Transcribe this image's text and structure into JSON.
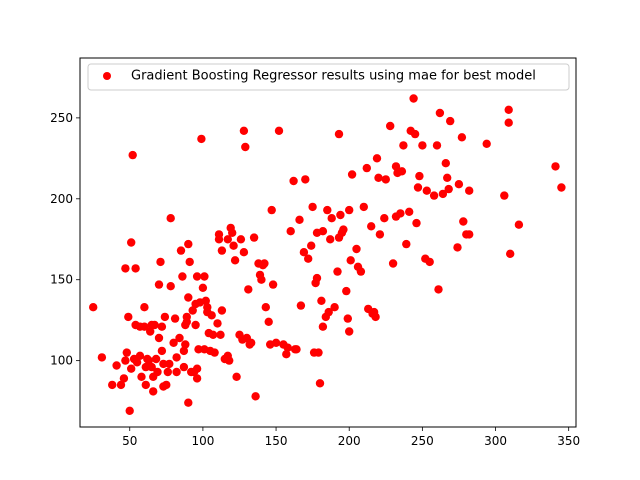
{
  "chart_data": {
    "type": "scatter",
    "title": "",
    "xlabel": "",
    "ylabel": "",
    "xlim": [
      16,
      355
    ],
    "ylim": [
      59,
      287
    ],
    "xticks": [
      50,
      100,
      150,
      200,
      250,
      300,
      350
    ],
    "yticks": [
      100,
      150,
      200,
      250
    ],
    "grid": false,
    "legend_position": "upper-left",
    "series": [
      {
        "name": "Gradient Boosting Regressor results using mae for best model",
        "color": "#ff0000",
        "points": [
          [
            25,
            133
          ],
          [
            31,
            102
          ],
          [
            38,
            85
          ],
          [
            41,
            97
          ],
          [
            44,
            85
          ],
          [
            46,
            89
          ],
          [
            47,
            100
          ],
          [
            47,
            157
          ],
          [
            48,
            105
          ],
          [
            49,
            127
          ],
          [
            50,
            69
          ],
          [
            51,
            95
          ],
          [
            51,
            173
          ],
          [
            52,
            227
          ],
          [
            53,
            101
          ],
          [
            54,
            122
          ],
          [
            54,
            157
          ],
          [
            55,
            99
          ],
          [
            57,
            103
          ],
          [
            57,
            121
          ],
          [
            58,
            90
          ],
          [
            60,
            133
          ],
          [
            60,
            121
          ],
          [
            61,
            96
          ],
          [
            61,
            85
          ],
          [
            62,
            101
          ],
          [
            63,
            100
          ],
          [
            64,
            118
          ],
          [
            65,
            96
          ],
          [
            65,
            122
          ],
          [
            66,
            81
          ],
          [
            66,
            90
          ],
          [
            67,
            122
          ],
          [
            68,
            101
          ],
          [
            69,
            93
          ],
          [
            70,
            114
          ],
          [
            70,
            147
          ],
          [
            71,
            161
          ],
          [
            72,
            106
          ],
          [
            72,
            121
          ],
          [
            73,
            98
          ],
          [
            73,
            84
          ],
          [
            74,
            127
          ],
          [
            75,
            85
          ],
          [
            76,
            93
          ],
          [
            77,
            98
          ],
          [
            78,
            188
          ],
          [
            78,
            146
          ],
          [
            80,
            111
          ],
          [
            81,
            126
          ],
          [
            82,
            102
          ],
          [
            82,
            93
          ],
          [
            84,
            114
          ],
          [
            85,
            168
          ],
          [
            86,
            152
          ],
          [
            87,
            96
          ],
          [
            87,
            106
          ],
          [
            88,
            122
          ],
          [
            88,
            110
          ],
          [
            89,
            124
          ],
          [
            89,
            127
          ],
          [
            90,
            74
          ],
          [
            90,
            139
          ],
          [
            90,
            172
          ],
          [
            91,
            161
          ],
          [
            92,
            93
          ],
          [
            93,
            131
          ],
          [
            94,
            93
          ],
          [
            95,
            122
          ],
          [
            95,
            135
          ],
          [
            96,
            89
          ],
          [
            96,
            152
          ],
          [
            96,
            95
          ],
          [
            97,
            107
          ],
          [
            98,
            136
          ],
          [
            99,
            237
          ],
          [
            100,
            145
          ],
          [
            101,
            107
          ],
          [
            101,
            152
          ],
          [
            102,
            137
          ],
          [
            103,
            130
          ],
          [
            103,
            133
          ],
          [
            104,
            117
          ],
          [
            105,
            106
          ],
          [
            106,
            128
          ],
          [
            107,
            116
          ],
          [
            108,
            105
          ],
          [
            110,
            123
          ],
          [
            111,
            178
          ],
          [
            111,
            175
          ],
          [
            112,
            116
          ],
          [
            113,
            131
          ],
          [
            113,
            168
          ],
          [
            115,
            101
          ],
          [
            117,
            175
          ],
          [
            117,
            103
          ],
          [
            118,
            100
          ],
          [
            119,
            182
          ],
          [
            120,
            179
          ],
          [
            121,
            171
          ],
          [
            122,
            162
          ],
          [
            123,
            90
          ],
          [
            125,
            116
          ],
          [
            126,
            175
          ],
          [
            127,
            113
          ],
          [
            128,
            242
          ],
          [
            128,
            167
          ],
          [
            129,
            232
          ],
          [
            130,
            114
          ],
          [
            131,
            144
          ],
          [
            132,
            110
          ],
          [
            133,
            111
          ],
          [
            135,
            176
          ],
          [
            136,
            78
          ],
          [
            138,
            160
          ],
          [
            139,
            153
          ],
          [
            140,
            150
          ],
          [
            141,
            159
          ],
          [
            142,
            160
          ],
          [
            143,
            133
          ],
          [
            145,
            124
          ],
          [
            146,
            110
          ],
          [
            147,
            193
          ],
          [
            148,
            147
          ],
          [
            150,
            111
          ],
          [
            152,
            242
          ],
          [
            155,
            110
          ],
          [
            157,
            104
          ],
          [
            158,
            108
          ],
          [
            160,
            180
          ],
          [
            162,
            211
          ],
          [
            163,
            107
          ],
          [
            164,
            107
          ],
          [
            166,
            187
          ],
          [
            167,
            134
          ],
          [
            169,
            167
          ],
          [
            170,
            212
          ],
          [
            172,
            163
          ],
          [
            174,
            171
          ],
          [
            175,
            195
          ],
          [
            176,
            105
          ],
          [
            177,
            148
          ],
          [
            178,
            151
          ],
          [
            178,
            179
          ],
          [
            179,
            105
          ],
          [
            180,
            86
          ],
          [
            181,
            137
          ],
          [
            182,
            180
          ],
          [
            182,
            121
          ],
          [
            184,
            127
          ],
          [
            185,
            193
          ],
          [
            186,
            130
          ],
          [
            187,
            175
          ],
          [
            188,
            188
          ],
          [
            190,
            133
          ],
          [
            192,
            155
          ],
          [
            193,
            240
          ],
          [
            193,
            176
          ],
          [
            194,
            190
          ],
          [
            195,
            179
          ],
          [
            196,
            181
          ],
          [
            198,
            143
          ],
          [
            199,
            126
          ],
          [
            200,
            118
          ],
          [
            200,
            193
          ],
          [
            201,
            162
          ],
          [
            202,
            215
          ],
          [
            205,
            169
          ],
          [
            206,
            158
          ],
          [
            208,
            155
          ],
          [
            210,
            195
          ],
          [
            212,
            219
          ],
          [
            213,
            132
          ],
          [
            215,
            183
          ],
          [
            216,
            129
          ],
          [
            217,
            130
          ],
          [
            218,
            127
          ],
          [
            219,
            225
          ],
          [
            220,
            213
          ],
          [
            221,
            178
          ],
          [
            224,
            188
          ],
          [
            225,
            212
          ],
          [
            228,
            245
          ],
          [
            230,
            160
          ],
          [
            232,
            189
          ],
          [
            232,
            220
          ],
          [
            233,
            216
          ],
          [
            235,
            191
          ],
          [
            236,
            217
          ],
          [
            237,
            233
          ],
          [
            239,
            172
          ],
          [
            241,
            192
          ],
          [
            242,
            242
          ],
          [
            244,
            262
          ],
          [
            245,
            240
          ],
          [
            246,
            185
          ],
          [
            247,
            207
          ],
          [
            248,
            214
          ],
          [
            250,
            233
          ],
          [
            252,
            163
          ],
          [
            253,
            205
          ],
          [
            255,
            161
          ],
          [
            258,
            202
          ],
          [
            260,
            233
          ],
          [
            261,
            144
          ],
          [
            262,
            253
          ],
          [
            264,
            203
          ],
          [
            266,
            222
          ],
          [
            267,
            213
          ],
          [
            268,
            206
          ],
          [
            269,
            248
          ],
          [
            274,
            170
          ],
          [
            275,
            209
          ],
          [
            277,
            238
          ],
          [
            278,
            186
          ],
          [
            280,
            178
          ],
          [
            282,
            178
          ],
          [
            282,
            205
          ],
          [
            294,
            234
          ],
          [
            306,
            202
          ],
          [
            309,
            255
          ],
          [
            309,
            247
          ],
          [
            310,
            166
          ],
          [
            316,
            184
          ],
          [
            341,
            220
          ],
          [
            345,
            207
          ]
        ]
      }
    ]
  }
}
